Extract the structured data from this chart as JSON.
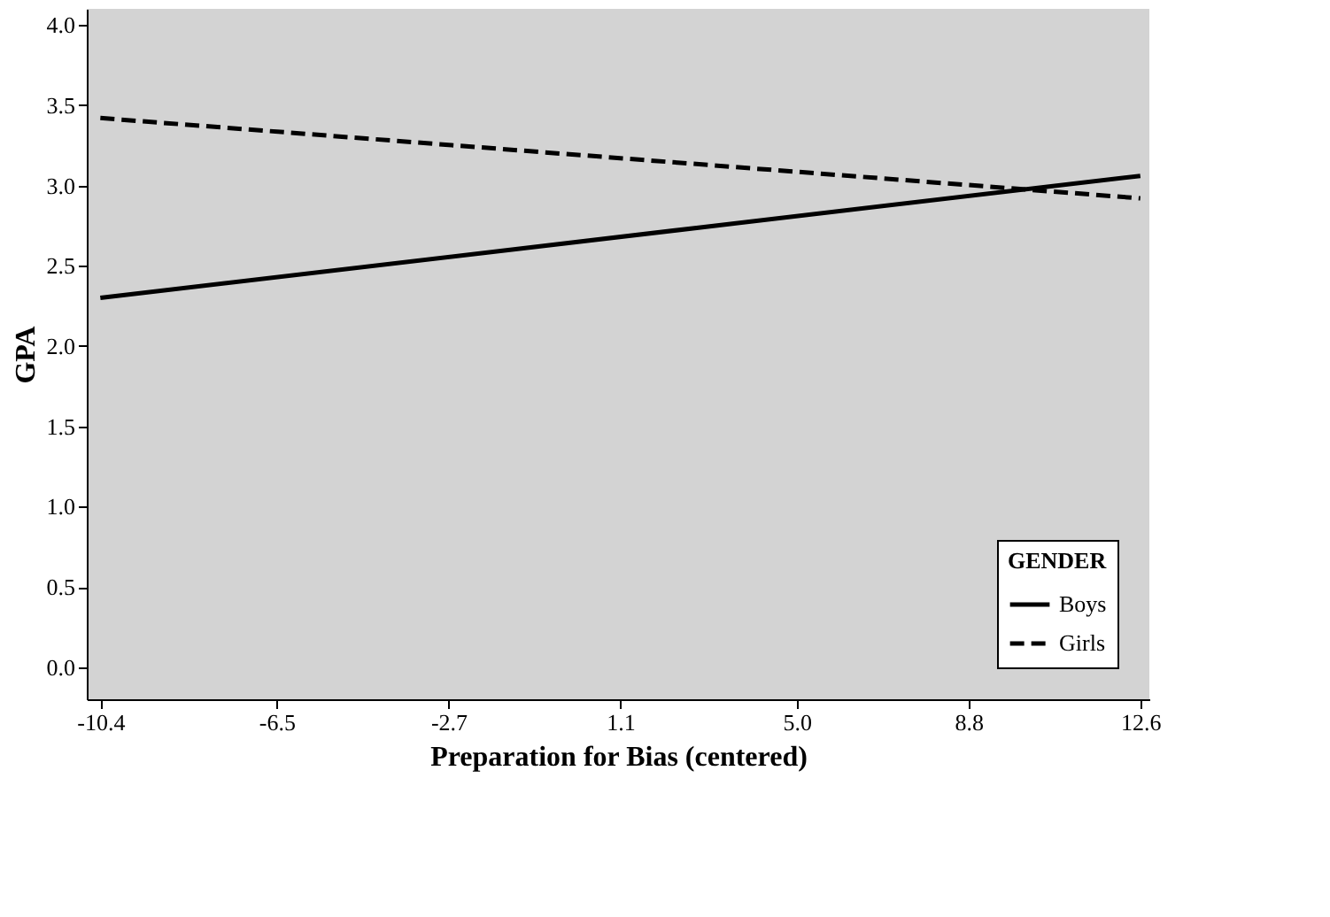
{
  "chart_data": {
    "type": "line",
    "xlabel": "Preparation for Bias (centered)",
    "ylabel": "GPA",
    "legend_title": "GENDER",
    "x": [
      -10.4,
      12.6
    ],
    "series": [
      {
        "name": "Boys",
        "color": "#000000",
        "values": [
          2.3,
          3.06
        ],
        "line_style": "solid"
      },
      {
        "name": "Girls",
        "color": "#000000",
        "values": [
          3.42,
          2.92
        ],
        "line_style": "dashed"
      }
    ],
    "xlim": [
      -10.7,
      12.8
    ],
    "xticks": [
      -10.4,
      -6.5,
      -2.7,
      1.1,
      {
        "value": 5,
        "label": "5.0"
      },
      8.8,
      12.6
    ],
    "ylim": [
      -0.2,
      4.1
    ],
    "yticks": [
      {
        "value": 0,
        "label": "0.0"
      },
      0.5,
      {
        "value": 1,
        "label": "1.0"
      },
      1.5,
      {
        "value": 2,
        "label": "2.0"
      },
      2.5,
      {
        "value": 3,
        "label": "3.0"
      },
      3.5,
      {
        "value": 4,
        "label": "4.0"
      }
    ],
    "grid": false,
    "legend": "bottom right",
    "marker": "none"
  }
}
